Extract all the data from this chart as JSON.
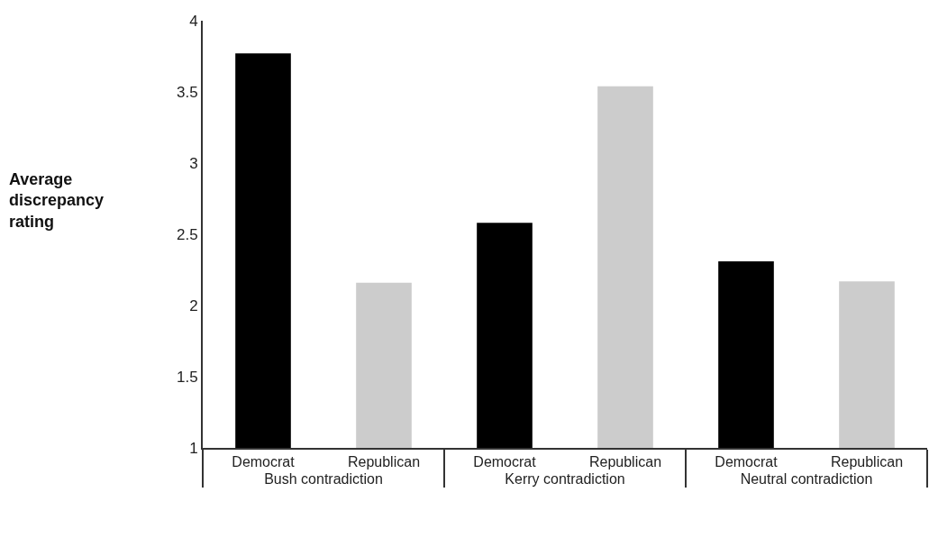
{
  "chart_data": {
    "type": "bar",
    "ylabel": "Average discrepancy rating",
    "categories": [
      "Bush contradiction",
      "Kerry contradiction",
      "Neutral contradiction"
    ],
    "series": [
      {
        "name": "Democrat",
        "color": "#000000",
        "values": [
          3.77,
          2.58,
          2.31
        ]
      },
      {
        "name": "Republican",
        "color": "#cccccc",
        "values": [
          2.16,
          3.54,
          2.17
        ]
      }
    ],
    "ylim": [
      1,
      4
    ],
    "yticks": [
      1,
      1.5,
      2,
      2.5,
      3,
      3.5,
      4
    ],
    "grid": false,
    "legend": false
  }
}
